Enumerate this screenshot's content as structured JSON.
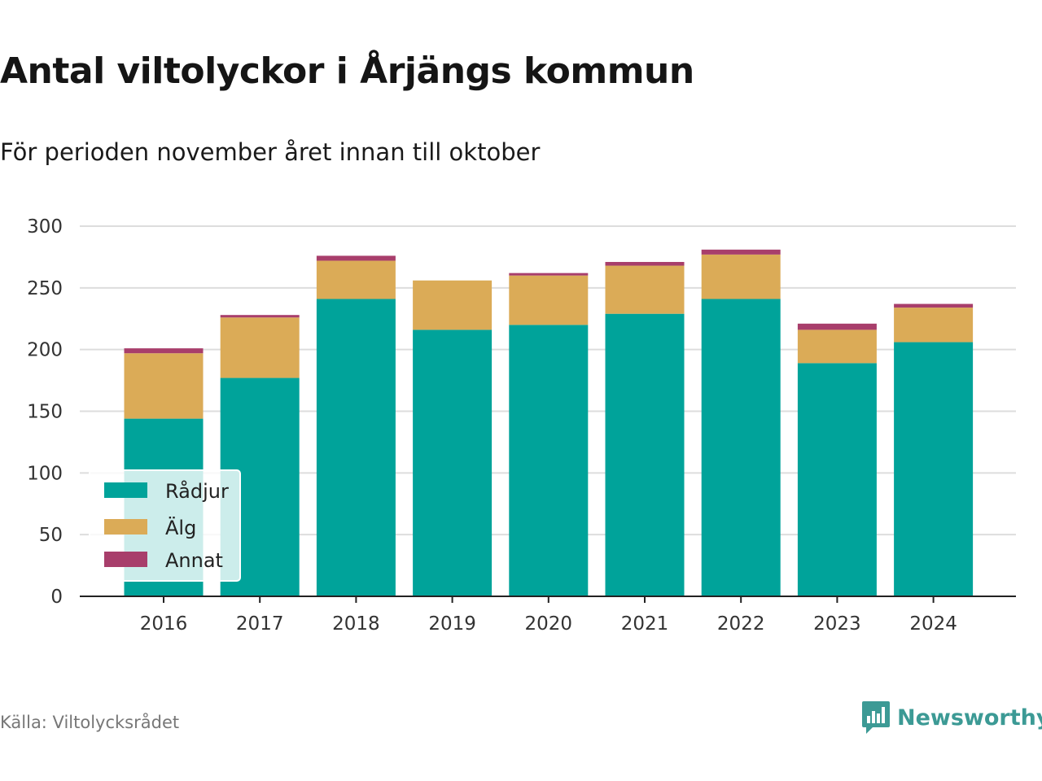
{
  "header": {
    "title": "Antal viltolyckor i Årjängs kommun",
    "subtitle": "För perioden november året innan till oktober"
  },
  "footer": {
    "source": "Källa: Viltolycksrådet",
    "brand": "Newsworthy"
  },
  "colors": {
    "radjur": "#00a39a",
    "alg": "#dbab57",
    "annat": "#a83e6b",
    "grid": "#dddddd",
    "axis": "#222222",
    "brand": "#3c9a95"
  },
  "icons": {
    "brand_logo": "bar-chart-speech-bubble-icon"
  },
  "chart_data": {
    "type": "bar",
    "stacked": true,
    "categories": [
      "2016",
      "2017",
      "2018",
      "2019",
      "2020",
      "2021",
      "2022",
      "2023",
      "2024"
    ],
    "series": [
      {
        "name": "Rådjur",
        "values": [
          144,
          177,
          241,
          216,
          220,
          229,
          241,
          189,
          206
        ]
      },
      {
        "name": "Älg",
        "values": [
          53,
          49,
          31,
          40,
          40,
          39,
          36,
          27,
          28
        ]
      },
      {
        "name": "Annat",
        "values": [
          4,
          2,
          4,
          0,
          2,
          3,
          4,
          5,
          3
        ]
      }
    ],
    "yticks": [
      0,
      50,
      100,
      150,
      200,
      250,
      300
    ],
    "ylim": [
      0,
      300
    ],
    "grid": true,
    "legend_position": "bottom-left"
  }
}
